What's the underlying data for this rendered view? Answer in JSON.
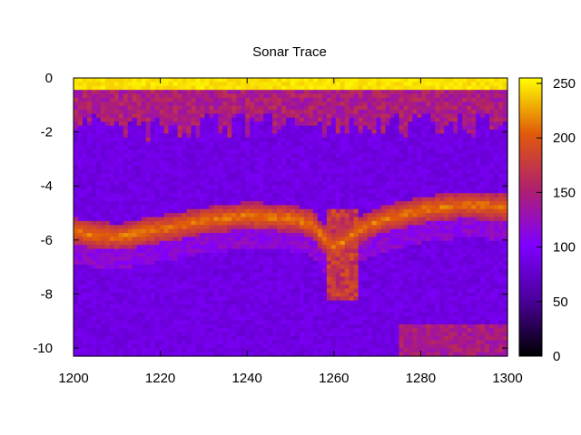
{
  "chart_data": {
    "type": "heatmap",
    "title": "Sonar Trace",
    "xlabel": "",
    "ylabel": "",
    "xlim": [
      1200,
      1300
    ],
    "ylim": [
      -10.3,
      0
    ],
    "x_ticks": [
      "1200",
      "1220",
      "1240",
      "1260",
      "1280",
      "1300"
    ],
    "y_ticks": [
      "0",
      "-2",
      "-4",
      "-6",
      "-8",
      "-10"
    ],
    "colorbar": {
      "range": [
        0,
        255
      ],
      "ticks": [
        "0",
        "50",
        "100",
        "150",
        "200",
        "250"
      ],
      "colormap": "gnuplot",
      "colors": [
        "#000000",
        "#4a0099",
        "#7f00ff",
        "#b0206e",
        "#e05a0a",
        "#ffff00"
      ]
    },
    "grid": false,
    "legend": "none",
    "features": {
      "surface_band": {
        "depth": [
          0,
          -0.4
        ],
        "intensity": 240
      },
      "near_surface_scatter": {
        "depth": [
          -0.4,
          -2.5
        ],
        "intensity": 140
      },
      "water_background": {
        "intensity": 88
      },
      "bottom_echo": {
        "x": [
          1200,
          1210,
          1220,
          1230,
          1240,
          1250,
          1255,
          1258,
          1260,
          1262,
          1265,
          1270,
          1280,
          1290,
          1300
        ],
        "depth": [
          -5.7,
          -5.9,
          -5.6,
          -5.3,
          -5.1,
          -5.2,
          -5.4,
          -6.0,
          -6.2,
          -6.1,
          -5.7,
          -5.3,
          -4.9,
          -4.7,
          -4.8
        ],
        "intensity": 215
      },
      "plume": {
        "x": [
          1258,
          1266
        ],
        "depth": [
          -4.8,
          -8.2
        ],
        "intensity": 170
      },
      "deep_echo": {
        "x": [
          1275,
          1300
        ],
        "depth": [
          -9.1,
          -10.3
        ],
        "intensity": 145
      }
    }
  }
}
